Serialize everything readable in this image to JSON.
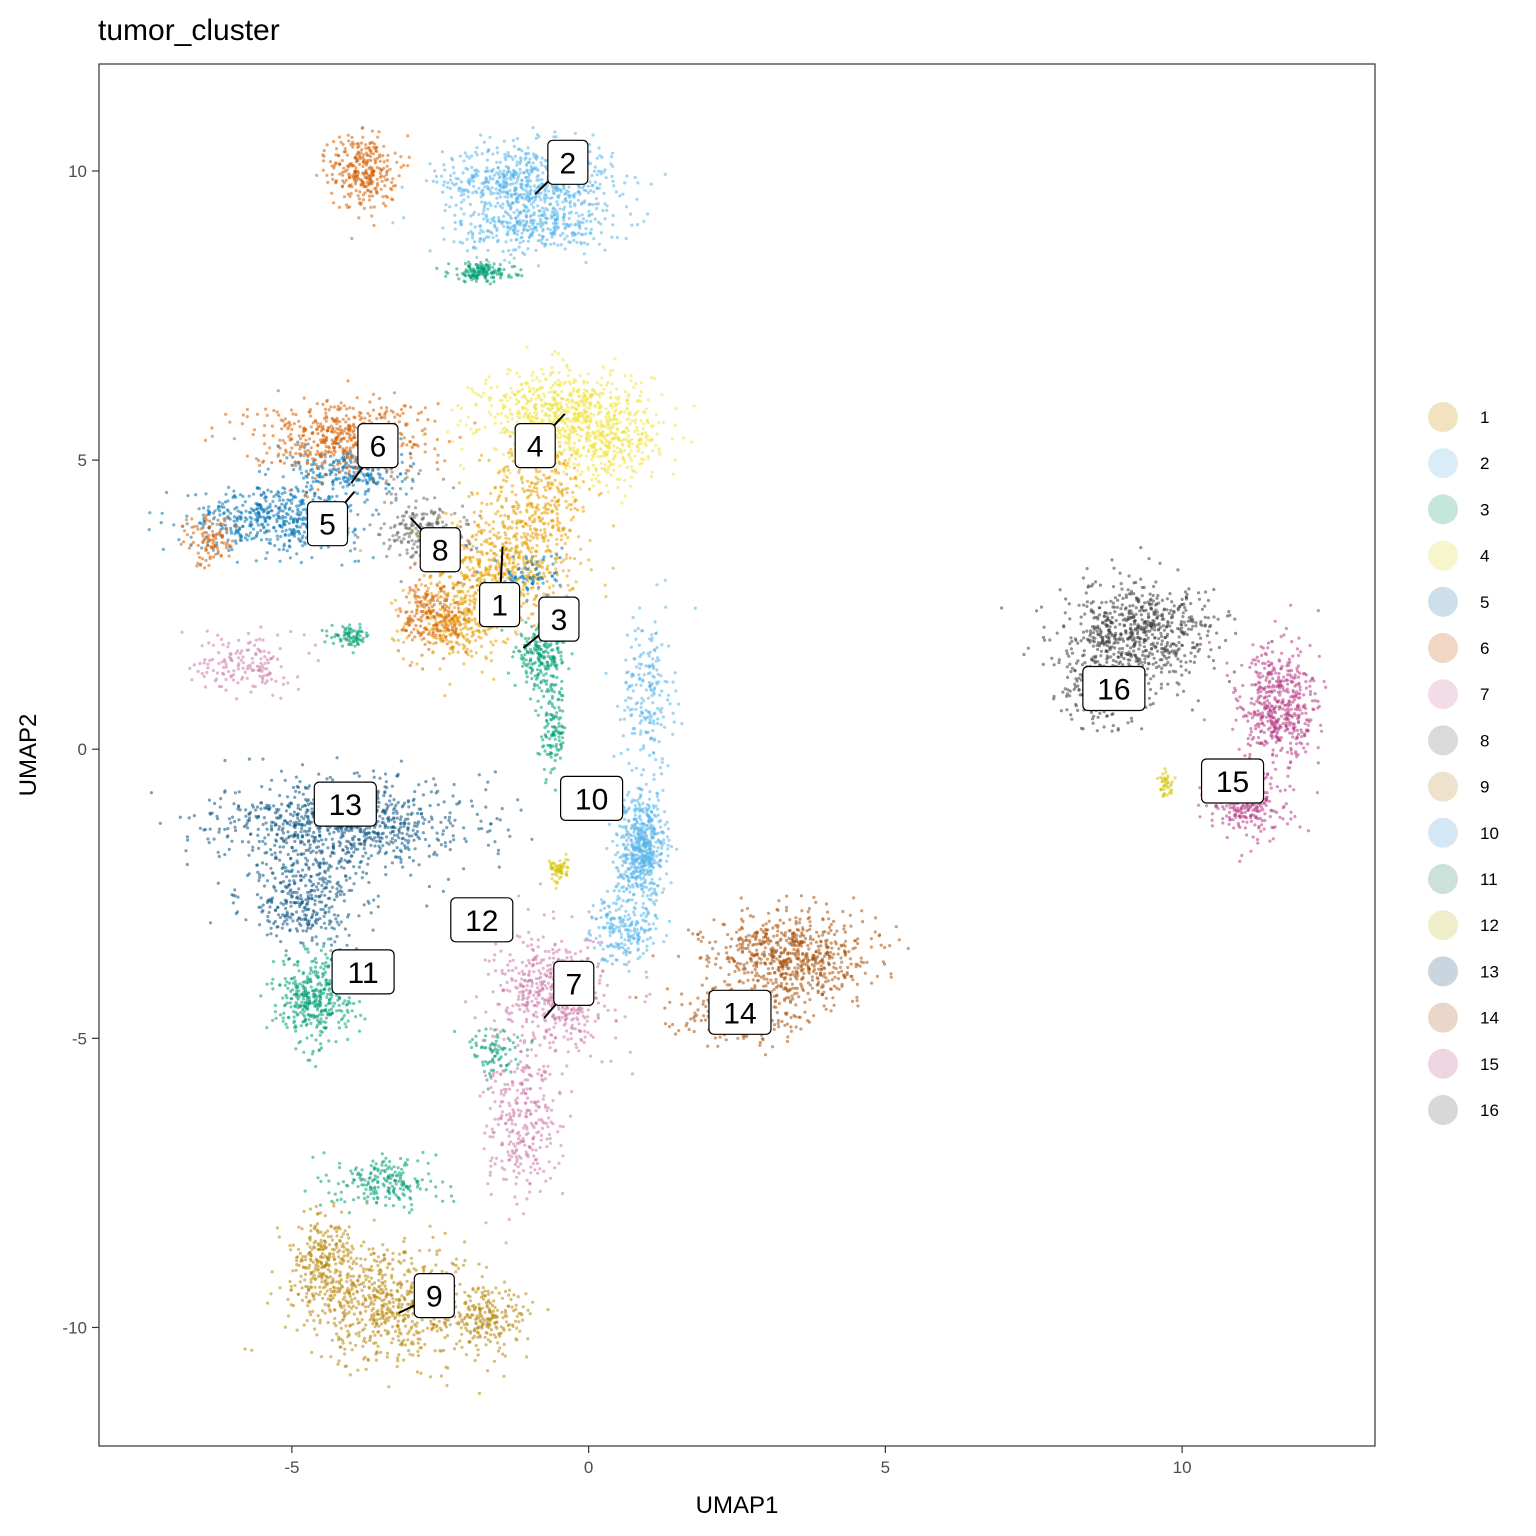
{
  "chart_data": {
    "type": "scatter",
    "title": "tumor_cluster",
    "xlabel": "UMAP1",
    "ylabel": "UMAP2",
    "xlim": [
      -8.25,
      13.25
    ],
    "ylim": [
      -12.05,
      11.85
    ],
    "xticks": [
      -5,
      0,
      5,
      10
    ],
    "yticks": [
      -10,
      -5,
      0,
      5,
      10
    ],
    "xtick_labels": [
      "-5",
      "0",
      "5",
      "10"
    ],
    "ytick_labels": [
      "-10",
      "-5",
      "0",
      "5",
      "10"
    ],
    "grid": false,
    "legend_position": "right",
    "series": [
      {
        "name": "1",
        "color": "#E69F00",
        "blobs": [
          [
            -1.4,
            3.2,
            1.1,
            0.9,
            600
          ],
          [
            -2.2,
            2.2,
            0.8,
            0.6,
            300
          ],
          [
            -0.8,
            4.5,
            0.8,
            0.8,
            250
          ]
        ],
        "label": {
          "x": -1.5,
          "y": 2.5,
          "text": "1",
          "point": [
            -1.45,
            3.5
          ]
        }
      },
      {
        "name": "2",
        "color": "#56B4E9",
        "blobs": [
          [
            -1.0,
            9.8,
            1.3,
            0.6,
            700
          ],
          [
            -0.9,
            9.0,
            1.2,
            0.4,
            300
          ],
          [
            1.0,
            1.0,
            0.4,
            1.2,
            200
          ],
          [
            0.9,
            -1.8,
            0.35,
            0.7,
            220
          ]
        ],
        "label": {
          "x": -0.35,
          "y": 10.15,
          "text": "2",
          "point": [
            -0.9,
            9.6
          ]
        }
      },
      {
        "name": "3",
        "color": "#009E73",
        "blobs": [
          [
            -1.8,
            8.25,
            0.5,
            0.15,
            150
          ],
          [
            -0.8,
            1.6,
            0.4,
            0.5,
            220
          ],
          [
            -0.6,
            0.3,
            0.2,
            0.7,
            120
          ],
          [
            -4.0,
            1.95,
            0.3,
            0.15,
            80
          ]
        ],
        "label": {
          "x": -0.5,
          "y": 2.25,
          "text": "3",
          "point": [
            -1.1,
            1.75
          ]
        }
      },
      {
        "name": "4",
        "color": "#F0E442",
        "blobs": [
          [
            -0.4,
            5.8,
            1.3,
            0.7,
            700
          ],
          [
            0.3,
            5.2,
            0.8,
            0.6,
            250
          ]
        ],
        "label": {
          "x": -0.9,
          "y": 5.25,
          "text": "4",
          "point": [
            -0.4,
            5.8
          ]
        }
      },
      {
        "name": "5",
        "color": "#0072B2",
        "blobs": [
          [
            -5.3,
            4.0,
            1.3,
            0.5,
            500
          ],
          [
            -4.0,
            4.8,
            0.9,
            0.4,
            250
          ],
          [
            -1.0,
            3.0,
            0.5,
            0.4,
            80
          ]
        ],
        "label": {
          "x": -4.4,
          "y": 3.9,
          "text": "5",
          "point": [
            -3.95,
            4.45
          ]
        }
      },
      {
        "name": "6",
        "color": "#D55E00",
        "blobs": [
          [
            -3.8,
            10.0,
            0.5,
            0.6,
            300
          ],
          [
            -4.2,
            5.4,
            1.4,
            0.6,
            500
          ],
          [
            -6.4,
            3.6,
            0.4,
            0.4,
            100
          ],
          [
            -2.6,
            2.3,
            0.5,
            0.6,
            200
          ]
        ],
        "label": {
          "x": -3.55,
          "y": 5.25,
          "text": "6",
          "point": [
            -4.0,
            4.6
          ]
        }
      },
      {
        "name": "7",
        "color": "#CC79A7",
        "blobs": [
          [
            -0.6,
            -4.2,
            0.9,
            0.9,
            500
          ],
          [
            -1.1,
            -6.5,
            0.6,
            1.2,
            300
          ],
          [
            -5.8,
            1.5,
            0.7,
            0.5,
            150
          ]
        ],
        "label": {
          "x": -0.25,
          "y": -4.05,
          "text": "7",
          "point": [
            -0.75,
            -4.65
          ]
        }
      },
      {
        "name": "8",
        "color": "#666666",
        "blobs": [
          [
            -2.8,
            3.8,
            0.7,
            0.5,
            200
          ]
        ],
        "label": {
          "x": -2.5,
          "y": 3.45,
          "text": "8",
          "point": [
            -3.0,
            4.0
          ]
        }
      },
      {
        "name": "9",
        "color": "#B8860B",
        "blobs": [
          [
            -3.3,
            -9.6,
            1.4,
            0.9,
            700
          ],
          [
            -4.5,
            -8.8,
            0.5,
            0.7,
            250
          ],
          [
            -1.7,
            -9.9,
            0.6,
            0.5,
            200
          ]
        ],
        "label": {
          "x": -2.6,
          "y": -9.45,
          "text": "9",
          "point": [
            -3.2,
            -9.75
          ]
        }
      },
      {
        "name": "10",
        "color": "#56B4E9",
        "blobs": [
          [
            0.9,
            -1.7,
            0.4,
            0.9,
            350
          ],
          [
            0.6,
            -3.1,
            0.5,
            0.5,
            200
          ]
        ],
        "label": {
          "x": 0.05,
          "y": -0.85,
          "text": "10",
          "point": null
        }
      },
      {
        "name": "11",
        "color": "#009E73",
        "blobs": [
          [
            -4.6,
            -4.3,
            0.6,
            0.7,
            400
          ],
          [
            -3.4,
            -7.5,
            0.8,
            0.4,
            200
          ],
          [
            -1.6,
            -5.2,
            0.4,
            0.4,
            80
          ]
        ],
        "label": {
          "x": -3.8,
          "y": -3.85,
          "text": "11",
          "point": null
        }
      },
      {
        "name": "12",
        "color": "#D4C400",
        "blobs": [
          [
            -0.5,
            -2.1,
            0.15,
            0.2,
            60
          ],
          [
            9.75,
            -0.6,
            0.12,
            0.2,
            40
          ]
        ],
        "label": {
          "x": -1.8,
          "y": -2.95,
          "text": "12",
          "point": null
        }
      },
      {
        "name": "13",
        "color": "#0B5384",
        "blobs": [
          [
            -4.1,
            -1.3,
            1.9,
            0.7,
            900
          ],
          [
            -4.8,
            -2.6,
            0.9,
            0.7,
            350
          ]
        ],
        "label": {
          "x": -4.1,
          "y": -0.95,
          "text": "13",
          "point": null
        }
      },
      {
        "name": "14",
        "color": "#A8500A",
        "blobs": [
          [
            3.4,
            -3.6,
            1.2,
            0.7,
            700
          ],
          [
            2.6,
            -4.6,
            0.9,
            0.4,
            250
          ]
        ],
        "label": {
          "x": 2.55,
          "y": -4.55,
          "text": "14",
          "point": null
        }
      },
      {
        "name": "15",
        "color": "#B83A85",
        "blobs": [
          [
            11.6,
            0.7,
            0.6,
            1.0,
            500
          ],
          [
            11.1,
            -1.0,
            0.6,
            0.5,
            250
          ]
        ],
        "label": {
          "x": 10.85,
          "y": -0.55,
          "text": "15",
          "point": null
        }
      },
      {
        "name": "16",
        "color": "#3A3A3A",
        "blobs": [
          [
            9.3,
            2.0,
            1.2,
            0.8,
            700
          ],
          [
            8.6,
            1.0,
            0.6,
            0.6,
            200
          ]
        ],
        "label": {
          "x": 8.85,
          "y": 1.05,
          "text": "16",
          "point": null
        }
      }
    ]
  },
  "legend": {
    "items": [
      "1",
      "2",
      "3",
      "4",
      "5",
      "6",
      "7",
      "8",
      "9",
      "10",
      "11",
      "12",
      "13",
      "14",
      "15",
      "16"
    ],
    "key_colors": [
      "#F3E2C0",
      "#D9ECF7",
      "#C7E6DB",
      "#F7F5CC",
      "#CCDFEB",
      "#F2D6C4",
      "#F1DCE8",
      "#DADADA",
      "#EEE2CD",
      "#D4E7F5",
      "#CCE1D8",
      "#EFEECB",
      "#C9D6E0",
      "#EAD7C9",
      "#EDD6E2",
      "#D8D8D8"
    ]
  }
}
